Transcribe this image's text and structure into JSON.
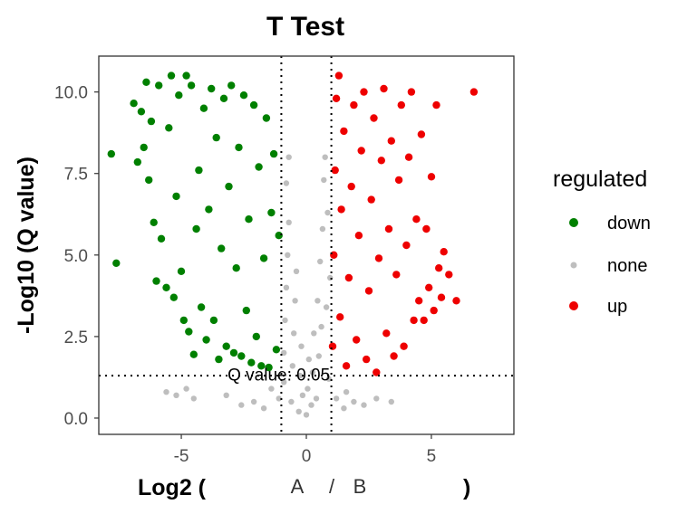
{
  "chart_data": {
    "type": "scatter",
    "title": "T Test",
    "xlabel_parts": [
      "Log2 (",
      "A",
      "/",
      "B",
      ")"
    ],
    "ylabel": "-Log10 (Q value)",
    "xlim": [
      -8.3,
      8.3
    ],
    "ylim": [
      -0.5,
      11.1
    ],
    "x_ticks": [
      -5,
      0,
      5
    ],
    "x_tick_labels": [
      "-5",
      "0",
      "5"
    ],
    "y_ticks": [
      0.0,
      2.5,
      5.0,
      7.5,
      10.0
    ],
    "y_tick_labels": [
      "0.0",
      "2.5",
      "5.0",
      "7.5",
      "10.0"
    ],
    "vlines": [
      -1,
      1
    ],
    "hline": 1.3,
    "annotation": {
      "text": "Q value: 0.05",
      "x": -1.1,
      "y": 1.15
    },
    "grid": false,
    "legend": {
      "title": "regulated",
      "position": "right",
      "entries": [
        {
          "label": "down",
          "color": "#008000"
        },
        {
          "label": "none",
          "color": "#bebebe"
        },
        {
          "label": "up",
          "color": "#ee0000"
        }
      ]
    },
    "series": [
      {
        "name": "down",
        "color": "#008000",
        "points": [
          [
            -7.8,
            8.1
          ],
          [
            -7.6,
            4.75
          ],
          [
            -6.9,
            9.65
          ],
          [
            -6.75,
            7.85
          ],
          [
            -6.6,
            9.4
          ],
          [
            -6.5,
            8.3
          ],
          [
            -6.4,
            10.3
          ],
          [
            -6.3,
            7.3
          ],
          [
            -6.2,
            9.1
          ],
          [
            -6.1,
            6.0
          ],
          [
            -6.0,
            4.2
          ],
          [
            -5.9,
            10.2
          ],
          [
            -5.8,
            5.5
          ],
          [
            -5.6,
            4.0
          ],
          [
            -5.5,
            8.9
          ],
          [
            -5.4,
            10.5
          ],
          [
            -5.3,
            3.7
          ],
          [
            -5.2,
            6.8
          ],
          [
            -5.1,
            9.9
          ],
          [
            -5.0,
            4.5
          ],
          [
            -4.9,
            3.0
          ],
          [
            -4.8,
            10.5
          ],
          [
            -4.7,
            2.65
          ],
          [
            -4.6,
            10.2
          ],
          [
            -4.5,
            1.95
          ],
          [
            -4.4,
            5.8
          ],
          [
            -4.3,
            7.6
          ],
          [
            -4.2,
            3.4
          ],
          [
            -4.1,
            9.5
          ],
          [
            -4.0,
            2.4
          ],
          [
            -3.9,
            6.4
          ],
          [
            -3.8,
            10.1
          ],
          [
            -3.7,
            3.0
          ],
          [
            -3.6,
            8.6
          ],
          [
            -3.5,
            1.8
          ],
          [
            -3.4,
            5.2
          ],
          [
            -3.3,
            9.8
          ],
          [
            -3.2,
            2.2
          ],
          [
            -3.1,
            7.1
          ],
          [
            -3.0,
            10.2
          ],
          [
            -2.9,
            2.0
          ],
          [
            -2.8,
            4.6
          ],
          [
            -2.7,
            8.3
          ],
          [
            -2.6,
            1.9
          ],
          [
            -2.5,
            9.9
          ],
          [
            -2.4,
            3.3
          ],
          [
            -2.3,
            6.1
          ],
          [
            -2.2,
            1.7
          ],
          [
            -2.1,
            9.6
          ],
          [
            -2.0,
            2.5
          ],
          [
            -1.9,
            7.7
          ],
          [
            -1.8,
            1.6
          ],
          [
            -1.7,
            4.9
          ],
          [
            -1.6,
            9.2
          ],
          [
            -1.5,
            1.55
          ],
          [
            -1.4,
            6.3
          ],
          [
            -1.3,
            8.1
          ],
          [
            -1.2,
            2.1
          ],
          [
            -1.1,
            5.6
          ]
        ]
      },
      {
        "name": "none",
        "color": "#bebebe",
        "points": [
          [
            -5.6,
            0.8
          ],
          [
            -5.2,
            0.7
          ],
          [
            -4.8,
            0.9
          ],
          [
            -4.5,
            0.6
          ],
          [
            -3.2,
            0.7
          ],
          [
            -2.6,
            0.4
          ],
          [
            -2.1,
            0.5
          ],
          [
            -1.7,
            0.3
          ],
          [
            -1.4,
            0.9
          ],
          [
            -1.1,
            0.6
          ],
          [
            -0.9,
            1.1
          ],
          [
            -0.9,
            2.0
          ],
          [
            -0.85,
            3.0
          ],
          [
            -0.8,
            4.0
          ],
          [
            -0.75,
            5.0
          ],
          [
            -0.7,
            6.0
          ],
          [
            -0.8,
            7.2
          ],
          [
            -0.7,
            8.0
          ],
          [
            -0.6,
            0.5
          ],
          [
            -0.55,
            1.6
          ],
          [
            -0.5,
            2.6
          ],
          [
            -0.45,
            3.6
          ],
          [
            -0.4,
            4.5
          ],
          [
            -0.3,
            0.2
          ],
          [
            -0.25,
            1.3
          ],
          [
            -0.2,
            2.2
          ],
          [
            -0.15,
            0.7
          ],
          [
            0.0,
            0.1
          ],
          [
            0.05,
            0.9
          ],
          [
            0.1,
            1.8
          ],
          [
            0.2,
            0.4
          ],
          [
            0.25,
            1.4
          ],
          [
            0.3,
            2.6
          ],
          [
            0.4,
            0.6
          ],
          [
            0.45,
            3.6
          ],
          [
            0.5,
            1.9
          ],
          [
            0.55,
            4.8
          ],
          [
            0.6,
            2.8
          ],
          [
            0.65,
            5.8
          ],
          [
            0.7,
            7.3
          ],
          [
            0.75,
            8.0
          ],
          [
            0.8,
            3.4
          ],
          [
            0.85,
            6.3
          ],
          [
            0.9,
            1.2
          ],
          [
            0.95,
            4.3
          ],
          [
            1.2,
            0.6
          ],
          [
            1.5,
            0.3
          ],
          [
            1.9,
            0.5
          ],
          [
            2.3,
            0.4
          ],
          [
            2.8,
            0.6
          ],
          [
            3.4,
            0.5
          ],
          [
            1.6,
            0.8
          ]
        ]
      },
      {
        "name": "up",
        "color": "#ee0000",
        "points": [
          [
            1.05,
            2.2
          ],
          [
            1.1,
            5.0
          ],
          [
            1.15,
            7.6
          ],
          [
            1.2,
            9.8
          ],
          [
            1.3,
            10.5
          ],
          [
            1.35,
            3.1
          ],
          [
            1.4,
            6.4
          ],
          [
            1.5,
            8.8
          ],
          [
            1.6,
            1.6
          ],
          [
            1.7,
            4.3
          ],
          [
            1.8,
            7.1
          ],
          [
            1.9,
            9.6
          ],
          [
            2.0,
            2.4
          ],
          [
            2.1,
            5.6
          ],
          [
            2.2,
            8.2
          ],
          [
            2.3,
            10.0
          ],
          [
            2.4,
            1.8
          ],
          [
            2.5,
            3.9
          ],
          [
            2.6,
            6.7
          ],
          [
            2.7,
            9.2
          ],
          [
            2.8,
            1.4
          ],
          [
            2.9,
            4.9
          ],
          [
            3.0,
            7.9
          ],
          [
            3.1,
            10.1
          ],
          [
            3.2,
            2.6
          ],
          [
            3.3,
            5.8
          ],
          [
            3.4,
            8.5
          ],
          [
            3.5,
            1.9
          ],
          [
            3.6,
            4.4
          ],
          [
            3.7,
            7.3
          ],
          [
            3.8,
            9.6
          ],
          [
            3.9,
            2.2
          ],
          [
            4.0,
            5.3
          ],
          [
            4.1,
            8.0
          ],
          [
            4.2,
            10.0
          ],
          [
            4.3,
            3.0
          ],
          [
            4.4,
            6.1
          ],
          [
            4.5,
            3.6
          ],
          [
            4.6,
            8.7
          ],
          [
            4.7,
            3.0
          ],
          [
            4.8,
            5.8
          ],
          [
            4.9,
            4.0
          ],
          [
            5.0,
            7.4
          ],
          [
            5.1,
            3.3
          ],
          [
            5.2,
            9.6
          ],
          [
            5.3,
            4.6
          ],
          [
            5.4,
            3.7
          ],
          [
            5.5,
            5.1
          ],
          [
            5.7,
            4.4
          ],
          [
            6.0,
            3.6
          ],
          [
            6.7,
            10.0
          ]
        ]
      }
    ]
  }
}
